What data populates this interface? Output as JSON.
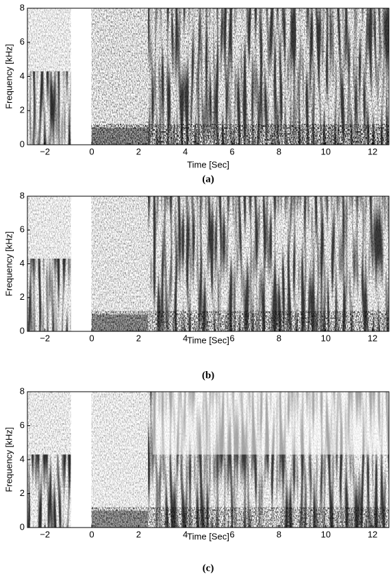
{
  "chart_data": [
    {
      "type": "spectrogram",
      "xlabel": "Time [Sec]",
      "ylabel": "Frequency [kHz]",
      "caption": "(a)",
      "xlim": [
        -2.75,
        12.7
      ],
      "ylim": [
        0,
        8
      ],
      "xticks": [
        {
          "value": -2,
          "label": "−2"
        },
        0,
        2,
        4,
        6,
        8,
        10,
        12
      ],
      "yticks": [
        0,
        2,
        4,
        6,
        8
      ]
    },
    {
      "type": "spectrogram",
      "xlabel": "Time [Sec]",
      "ylabel": "Frequency [kHz]",
      "caption": "(b)",
      "xlim": [
        -2.75,
        12.7
      ],
      "ylim": [
        0,
        8
      ],
      "xticks": [
        {
          "value": -2,
          "label": "−2"
        },
        0,
        2,
        4,
        6,
        8,
        10,
        12
      ],
      "yticks": [
        0,
        2,
        4,
        6,
        8
      ]
    },
    {
      "type": "spectrogram",
      "xlabel": "Time [Sec]",
      "ylabel": "Frequency [kHz]",
      "caption": "(c)",
      "xlim": [
        -2.75,
        12.7
      ],
      "ylim": [
        0,
        8
      ],
      "xticks": [
        {
          "value": -2,
          "label": "−2"
        },
        0,
        2,
        4,
        6,
        8,
        10,
        12
      ],
      "yticks": [
        0,
        2,
        4,
        6,
        8
      ]
    }
  ]
}
